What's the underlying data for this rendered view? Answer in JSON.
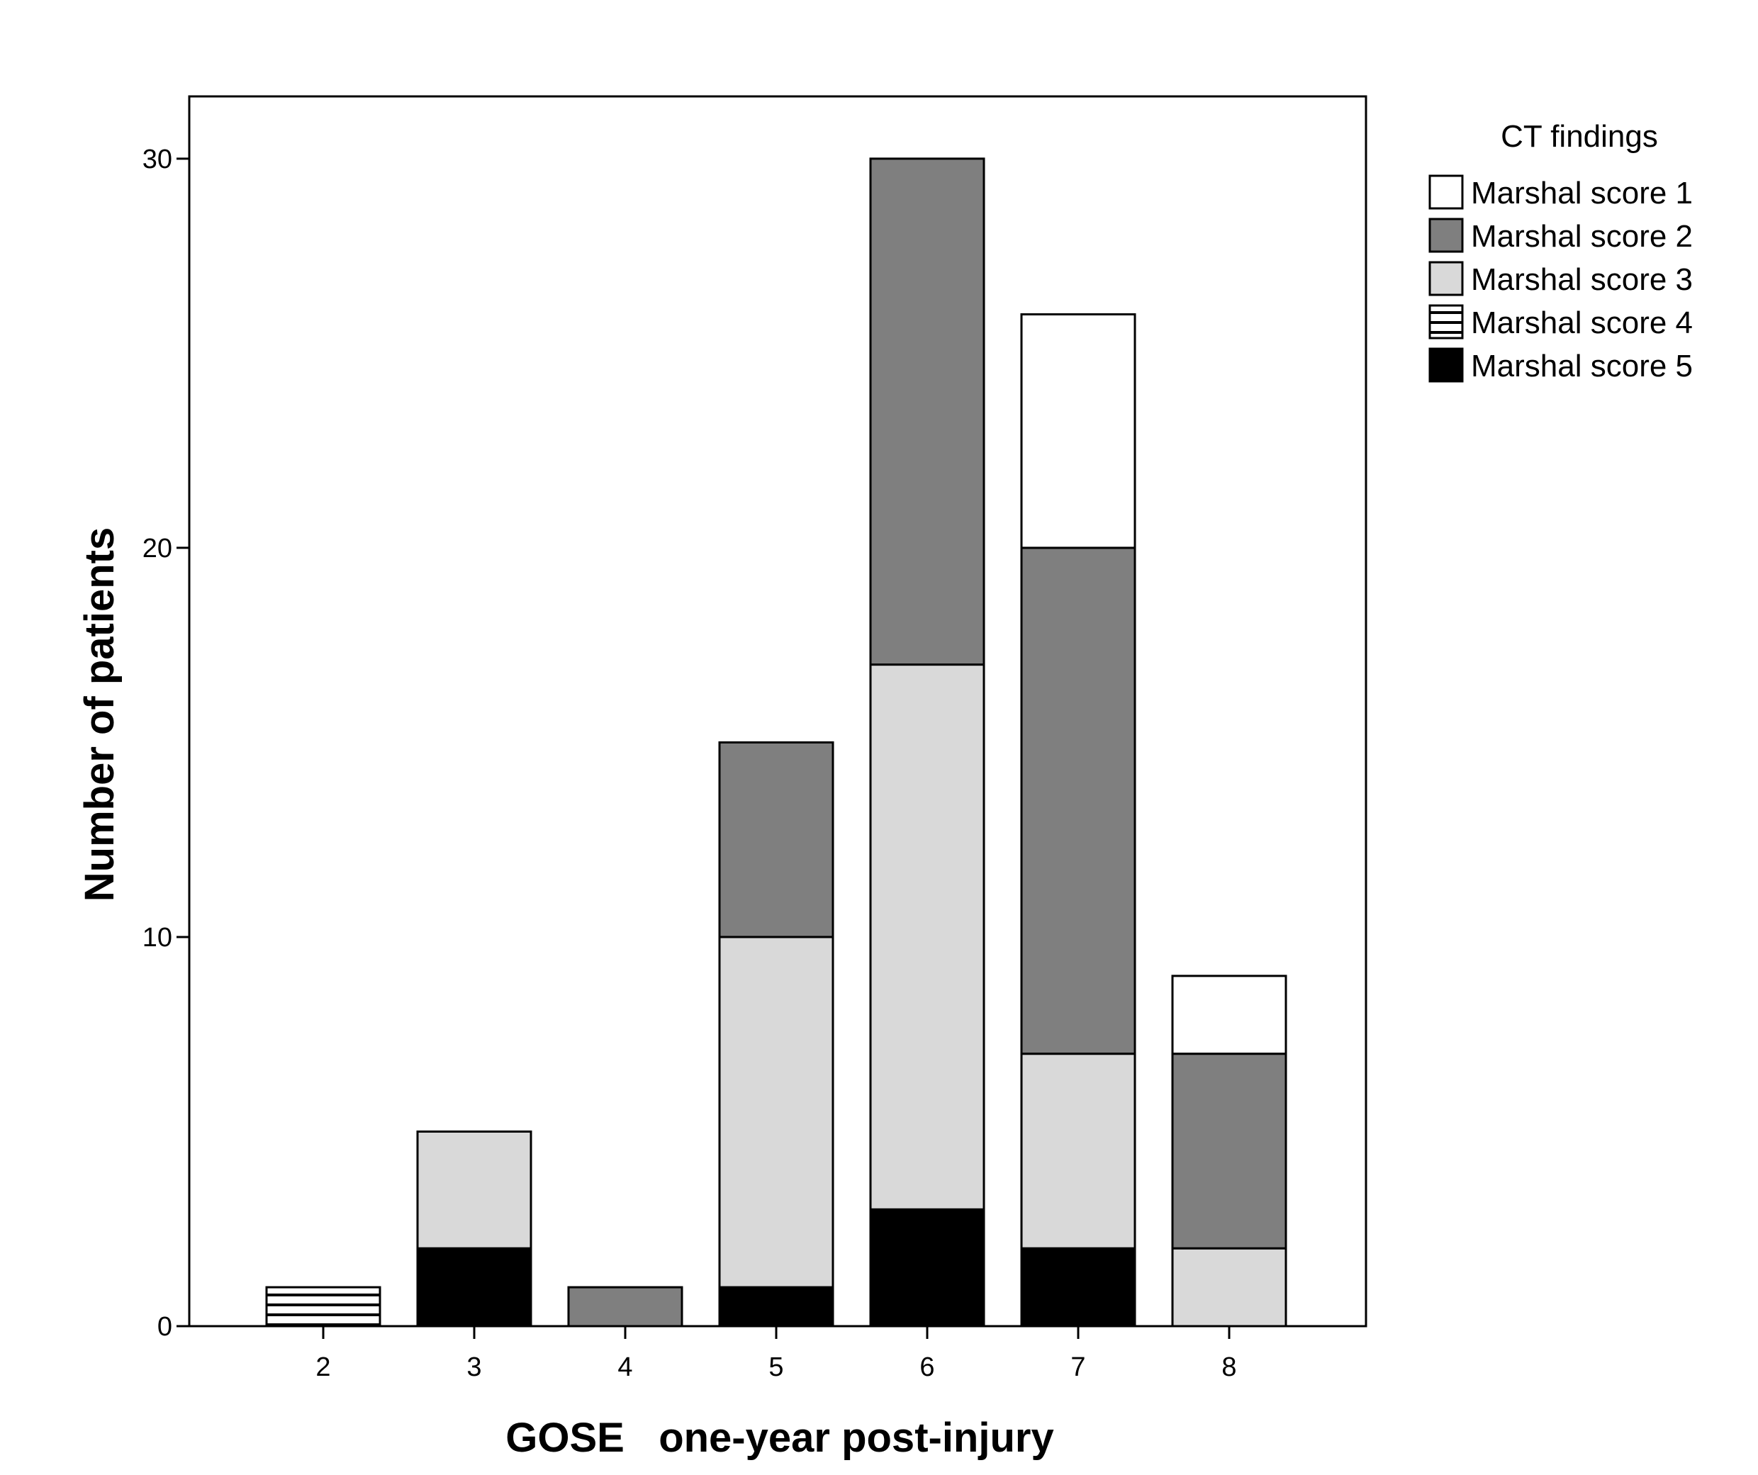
{
  "chart_data": {
    "type": "bar",
    "stacked": true,
    "categories": [
      "2",
      "3",
      "4",
      "5",
      "6",
      "7",
      "8"
    ],
    "series": [
      {
        "name": "Marshal score 5",
        "values": [
          0,
          2,
          0,
          1,
          3,
          2,
          0
        ],
        "color": "#000000",
        "pattern": "solid"
      },
      {
        "name": "Marshal score 4",
        "values": [
          1,
          0,
          0,
          0,
          0,
          0,
          0
        ],
        "color": "#ffffff",
        "pattern": "horizontal-lines"
      },
      {
        "name": "Marshal score 3",
        "values": [
          0,
          3,
          0,
          9,
          14,
          5,
          2
        ],
        "color": "#d9d9d9",
        "pattern": "solid"
      },
      {
        "name": "Marshal score 2",
        "values": [
          0,
          0,
          1,
          5,
          13,
          13,
          5
        ],
        "color": "#7f7f7f",
        "pattern": "solid"
      },
      {
        "name": "Marshal score 1",
        "values": [
          0,
          0,
          0,
          0,
          0,
          6,
          2
        ],
        "color": "#ffffff",
        "pattern": "solid"
      }
    ],
    "legend_order": [
      "Marshal score 1",
      "Marshal score 2",
      "Marshal score 3",
      "Marshal score 4",
      "Marshal score 5"
    ],
    "legend_title": "CT findings",
    "legend_position": "right",
    "xlabel": "GOSE   one-year post-injury",
    "ylabel": "Number of patients",
    "ylim": [
      0,
      31.6
    ],
    "yticks": [
      0,
      10,
      20,
      30
    ],
    "grid": false
  }
}
